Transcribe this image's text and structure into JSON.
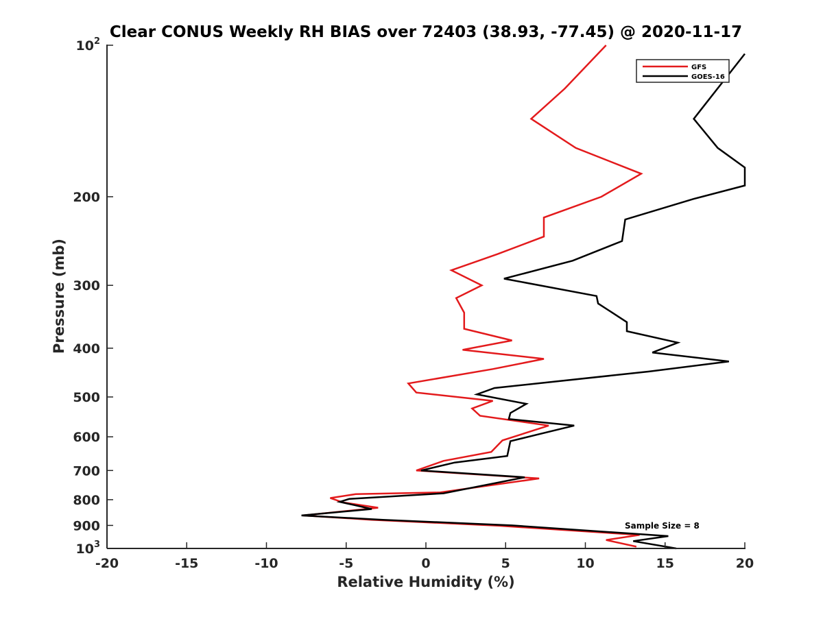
{
  "chart_data": {
    "type": "line",
    "title": "Clear CONUS Weekly RH BIAS over 72403 (38.93, -77.45) @ 2020-11-17",
    "xlabel": "Relative Humidity (%)",
    "ylabel": "Pressure (mb)",
    "xlim": [
      -20,
      20
    ],
    "ylim": [
      100,
      1000
    ],
    "y_scale": "log",
    "y_reversed": true,
    "grid": false,
    "legend_position": "top-right",
    "x_ticks": [
      -20,
      -15,
      -10,
      -5,
      0,
      5,
      10,
      15,
      20
    ],
    "x_tick_labels": [
      "-20",
      "-15",
      "-10",
      "-5",
      "0",
      "5",
      "10",
      "15",
      "20"
    ],
    "y_ticks": [
      {
        "value": 100,
        "base": "10",
        "exp": "2"
      },
      {
        "value": 200,
        "label": "200"
      },
      {
        "value": 300,
        "label": "300"
      },
      {
        "value": 400,
        "label": "400"
      },
      {
        "value": 500,
        "label": "500"
      },
      {
        "value": 600,
        "label": "600"
      },
      {
        "value": 700,
        "label": "700"
      },
      {
        "value": 800,
        "label": "800"
      },
      {
        "value": 900,
        "label": "900"
      },
      {
        "value": 1000,
        "base": "10",
        "exp": "3"
      }
    ],
    "series": [
      {
        "name": "GFS",
        "color": "#e31a1c",
        "x": [
          11.3,
          8.7,
          6.6,
          9.4,
          13.5,
          11.0,
          7.4,
          7.4,
          4.5,
          1.6,
          3.5,
          1.9,
          2.4,
          2.4,
          5.4,
          2.3,
          7.4,
          4.2,
          -1.1,
          -0.6,
          4.2,
          2.9,
          3.4,
          7.7,
          4.8,
          4.1,
          1.1,
          -0.6,
          7.1,
          0.9,
          -4.4,
          -6.0,
          -5.2,
          -3.0,
          -7.7,
          -3.4,
          4.5,
          13.4,
          11.3,
          13.2
        ],
        "y": [
          100,
          122,
          140,
          160,
          180,
          200,
          220,
          240,
          260,
          280,
          300,
          318,
          340,
          366,
          386,
          403,
          420,
          440,
          470,
          490,
          509,
          527,
          545,
          570,
          610,
          643,
          670,
          700,
          726,
          774,
          780,
          794,
          810,
          830,
          860,
          877,
          901,
          940,
          962,
          992
        ]
      },
      {
        "name": "GOES-16",
        "color": "#000000",
        "x": [
          20.0,
          16.8,
          18.3,
          20.0,
          20.0,
          16.8,
          12.5,
          12.3,
          9.2,
          4.9,
          10.7,
          10.8,
          12.6,
          12.6,
          15.8,
          14.2,
          19.0,
          14.0,
          4.3,
          3.2,
          6.3,
          5.3,
          5.2,
          9.3,
          5.3,
          5.1,
          1.8,
          -0.3,
          6.2,
          1.1,
          -4.8,
          -5.4,
          -4.5,
          -3.4,
          -7.8,
          -2.7,
          5.4,
          15.2,
          13.0,
          15.7
        ],
        "y": [
          104,
          140,
          160,
          175,
          190,
          202,
          222,
          245,
          268,
          291,
          315,
          326,
          355,
          370,
          390,
          408,
          425,
          445,
          480,
          494,
          516,
          538,
          553,
          570,
          612,
          655,
          675,
          700,
          722,
          777,
          797,
          808,
          820,
          835,
          860,
          877,
          900,
          945,
          967,
          1000
        ]
      }
    ],
    "annotations": [
      {
        "text": "Sample Size = 8"
      }
    ]
  }
}
